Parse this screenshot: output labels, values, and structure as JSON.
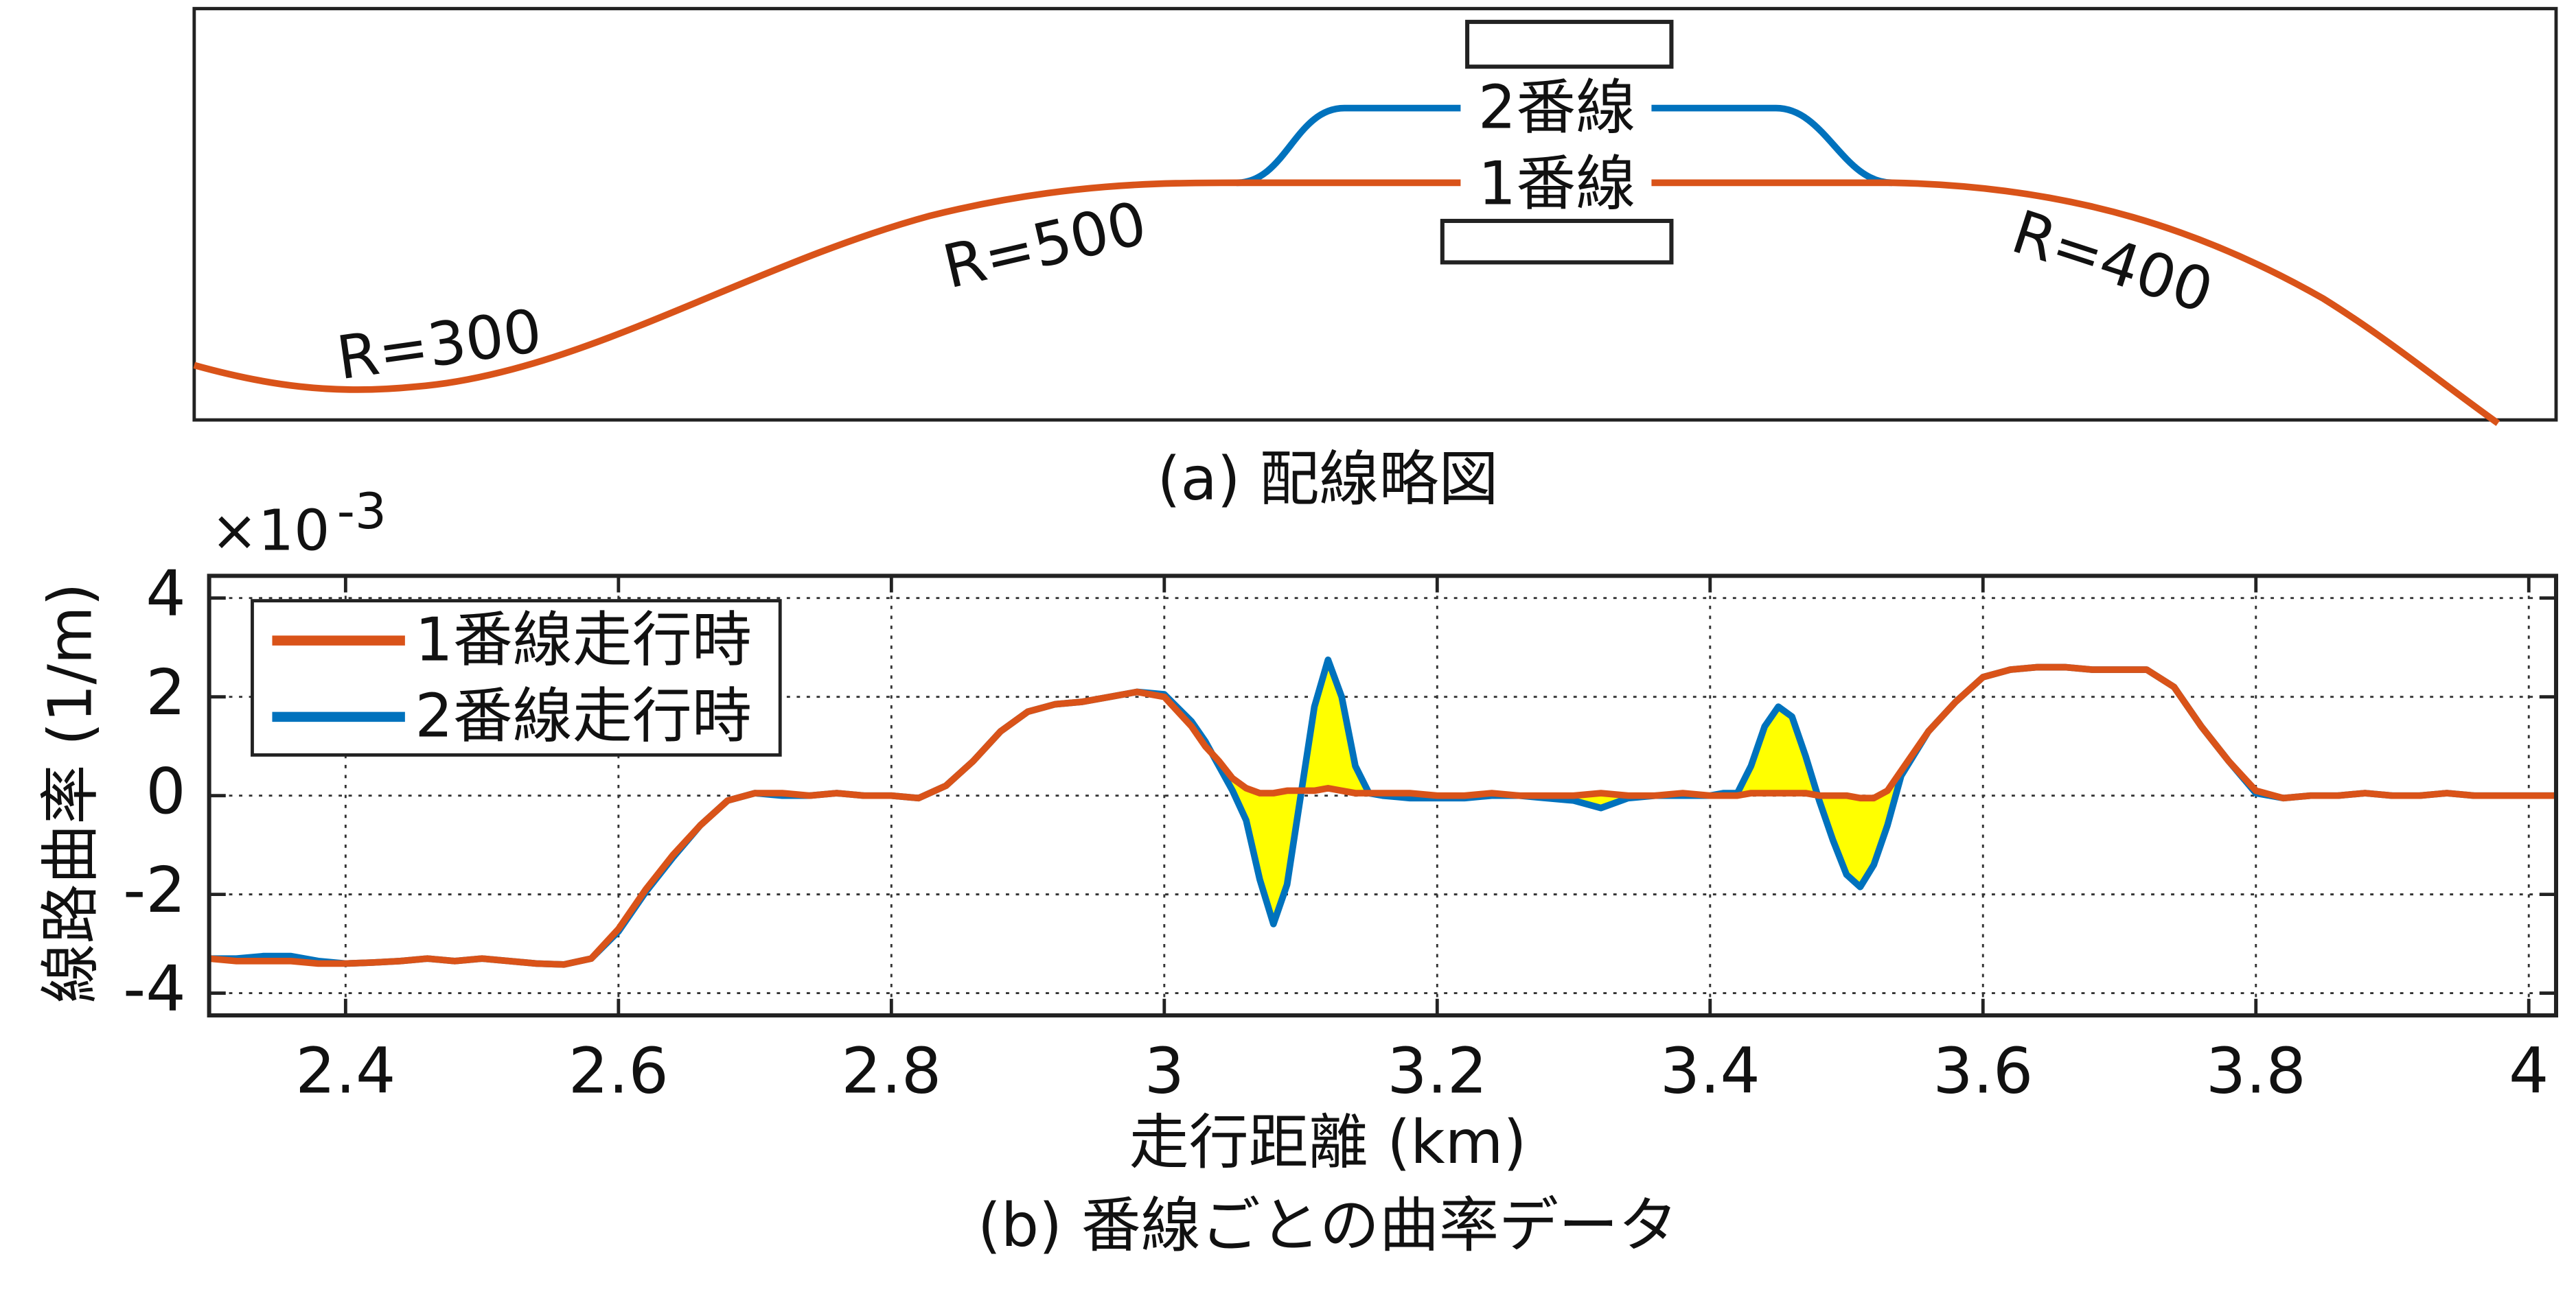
{
  "diagram": {
    "labels": [
      "R=300",
      "R=500",
      "R=400"
    ],
    "track_2": "2番線",
    "track_1": "1番線",
    "caption": "(a) 配線略図"
  },
  "chart_data": {
    "type": "line",
    "caption": "(b) 番線ごとの曲率データ",
    "x_label": "走行距離 (km)",
    "y_label": "線路曲率 (1/m)",
    "multiplier": "×10",
    "multiplier_exponent": "-3",
    "xlim": [
      2.3,
      4.02
    ],
    "ylim": [
      -4.45,
      4.45
    ],
    "xticks": [
      2.4,
      2.6,
      2.8,
      3,
      3.2,
      3.4,
      3.6,
      3.8,
      4
    ],
    "yticks": [
      -4,
      -2,
      0,
      2,
      4
    ],
    "grid": true,
    "legend": "upper left",
    "fill_between_color": "#ffff00",
    "x": [
      2.3,
      2.32,
      2.34,
      2.36,
      2.38,
      2.4,
      2.42,
      2.44,
      2.46,
      2.48,
      2.5,
      2.52,
      2.54,
      2.56,
      2.58,
      2.6,
      2.62,
      2.64,
      2.66,
      2.68,
      2.7,
      2.72,
      2.74,
      2.76,
      2.78,
      2.8,
      2.82,
      2.84,
      2.86,
      2.88,
      2.9,
      2.92,
      2.94,
      2.96,
      2.98,
      3.0,
      3.02,
      3.03,
      3.04,
      3.05,
      3.06,
      3.07,
      3.08,
      3.09,
      3.1,
      3.11,
      3.12,
      3.13,
      3.14,
      3.15,
      3.16,
      3.18,
      3.2,
      3.22,
      3.24,
      3.26,
      3.28,
      3.3,
      3.32,
      3.34,
      3.36,
      3.38,
      3.4,
      3.41,
      3.42,
      3.43,
      3.44,
      3.45,
      3.46,
      3.47,
      3.48,
      3.49,
      3.5,
      3.51,
      3.52,
      3.53,
      3.54,
      3.56,
      3.58,
      3.6,
      3.62,
      3.64,
      3.66,
      3.68,
      3.7,
      3.72,
      3.74,
      3.76,
      3.78,
      3.8,
      3.82,
      3.84,
      3.86,
      3.88,
      3.9,
      3.92,
      3.94,
      3.96,
      3.98,
      4.0,
      4.02
    ],
    "series": [
      {
        "name": "1番線走行時",
        "color": "#d95319",
        "values": [
          -3.3,
          -3.35,
          -3.35,
          -3.35,
          -3.4,
          -3.4,
          -3.38,
          -3.35,
          -3.3,
          -3.35,
          -3.3,
          -3.35,
          -3.4,
          -3.42,
          -3.3,
          -2.7,
          -1.9,
          -1.2,
          -0.6,
          -0.1,
          0.05,
          0.05,
          0,
          0.05,
          0,
          0,
          -0.05,
          0.2,
          0.7,
          1.3,
          1.7,
          1.85,
          1.9,
          2.0,
          2.1,
          2.0,
          1.4,
          1.0,
          0.7,
          0.35,
          0.15,
          0.05,
          0.05,
          0.1,
          0.1,
          0.1,
          0.15,
          0.1,
          0.05,
          0.05,
          0.05,
          0.05,
          0,
          0,
          0.05,
          0,
          0,
          0,
          0.05,
          0,
          0,
          0.05,
          0,
          0,
          0,
          0.05,
          0.05,
          0.05,
          0.05,
          0.05,
          0,
          0,
          0,
          -0.05,
          -0.05,
          0.1,
          0.5,
          1.3,
          1.9,
          2.4,
          2.55,
          2.6,
          2.6,
          2.55,
          2.55,
          2.55,
          2.2,
          1.4,
          0.7,
          0.1,
          -0.05,
          0,
          0,
          0.05,
          0,
          0,
          0.05,
          0,
          0,
          0,
          0
        ]
      },
      {
        "name": "2番線走行時",
        "color": "#0072bd",
        "values": [
          -3.3,
          -3.3,
          -3.25,
          -3.25,
          -3.35,
          -3.4,
          -3.38,
          -3.35,
          -3.3,
          -3.35,
          -3.3,
          -3.35,
          -3.4,
          -3.42,
          -3.3,
          -2.75,
          -1.95,
          -1.25,
          -0.6,
          -0.1,
          0.05,
          0,
          0,
          0.05,
          0,
          0,
          -0.05,
          0.2,
          0.7,
          1.3,
          1.7,
          1.85,
          1.9,
          2.0,
          2.1,
          2.05,
          1.5,
          1.1,
          0.6,
          0.1,
          -0.5,
          -1.7,
          -2.6,
          -1.8,
          0,
          1.8,
          2.75,
          2.0,
          0.6,
          0.05,
          0,
          -0.05,
          -0.05,
          -0.05,
          0,
          0,
          -0.05,
          -0.1,
          -0.25,
          -0.05,
          0,
          0,
          0,
          0.05,
          0.05,
          0.6,
          1.4,
          1.8,
          1.6,
          0.8,
          -0.1,
          -0.9,
          -1.6,
          -1.85,
          -1.4,
          -0.6,
          0.4,
          1.3,
          1.9,
          2.4,
          2.55,
          2.6,
          2.6,
          2.55,
          2.55,
          2.55,
          2.2,
          1.4,
          0.7,
          0.05,
          -0.05,
          0,
          0,
          0.05,
          0,
          0,
          0.05,
          0,
          0,
          0,
          0
        ]
      }
    ]
  }
}
